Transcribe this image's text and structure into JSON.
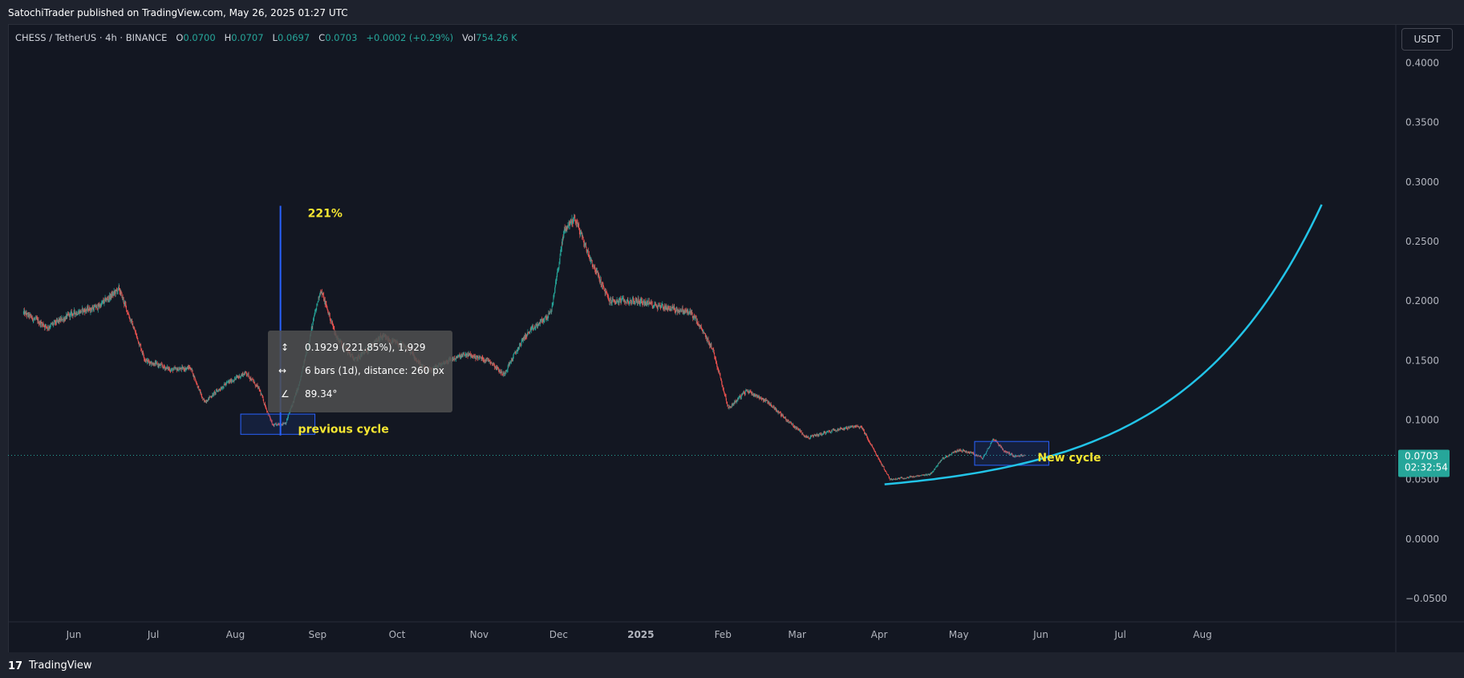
{
  "header": {
    "published": "SatochiTrader published on TradingView.com, May 26, 2025 01:27 UTC"
  },
  "legend": {
    "symbol": "CHESS / TetherUS · 4h · BINANCE",
    "o_label": "O",
    "o_value": "0.0700",
    "h_label": "H",
    "h_value": "0.0707",
    "l_label": "L",
    "l_value": "0.0697",
    "c_label": "C",
    "c_value": "0.0703",
    "change": "+0.0002 (+0.29%)",
    "vol_label": "Vol",
    "vol_value": "754.26 K"
  },
  "currency_button": "USDT",
  "footer": {
    "brand": "TradingView",
    "logo": "17"
  },
  "colors": {
    "up": "#26a69a",
    "down": "#ef5350",
    "curve": "#22c4e8",
    "measure": "#2962ff",
    "annotation": "#f5e632",
    "background": "#131722"
  },
  "chart_data": {
    "type": "candlestick",
    "title": "",
    "xlabel": "",
    "ylabel": "",
    "ylim": [
      -0.06,
      0.41
    ],
    "grid": false,
    "y_ticks": [
      "0.4000",
      "0.3500",
      "0.3000",
      "0.2500",
      "0.2000",
      "0.1500",
      "0.1000",
      "0.0500",
      "0.0000",
      "−0.0500"
    ],
    "y_tick_values": [
      0.4,
      0.35,
      0.3,
      0.25,
      0.2,
      0.15,
      0.1,
      0.05,
      0.0,
      -0.05
    ],
    "x_range": [
      "2024-05-13",
      "2025-09-25"
    ],
    "x_ticks": [
      {
        "label": "Jun",
        "date": "2024-06-01",
        "bold": false
      },
      {
        "label": "Jul",
        "date": "2024-07-01",
        "bold": false
      },
      {
        "label": "Aug",
        "date": "2024-08-01",
        "bold": false
      },
      {
        "label": "Sep",
        "date": "2024-09-01",
        "bold": false
      },
      {
        "label": "Oct",
        "date": "2024-10-01",
        "bold": false
      },
      {
        "label": "Nov",
        "date": "2024-11-01",
        "bold": false
      },
      {
        "label": "Dec",
        "date": "2024-12-01",
        "bold": false
      },
      {
        "label": "2025",
        "date": "2025-01-01",
        "bold": true
      },
      {
        "label": "Feb",
        "date": "2025-02-01",
        "bold": false
      },
      {
        "label": "Mar",
        "date": "2025-03-01",
        "bold": false
      },
      {
        "label": "Apr",
        "date": "2025-04-01",
        "bold": false
      },
      {
        "label": "May",
        "date": "2025-05-01",
        "bold": false
      },
      {
        "label": "Jun",
        "date": "2025-06-01",
        "bold": false
      },
      {
        "label": "Jul",
        "date": "2025-07-01",
        "bold": false
      },
      {
        "label": "Aug",
        "date": "2025-08-01",
        "bold": false
      }
    ],
    "price_path": [
      [
        "2024-05-13",
        0.19
      ],
      [
        "2024-05-22",
        0.178
      ],
      [
        "2024-06-01",
        0.19
      ],
      [
        "2024-06-10",
        0.195
      ],
      [
        "2024-06-18",
        0.21
      ],
      [
        "2024-06-28",
        0.15
      ],
      [
        "2024-07-08",
        0.142
      ],
      [
        "2024-07-15",
        0.144
      ],
      [
        "2024-07-20",
        0.115
      ],
      [
        "2024-07-28",
        0.13
      ],
      [
        "2024-08-05",
        0.14
      ],
      [
        "2024-08-10",
        0.125
      ],
      [
        "2024-08-15",
        0.095
      ],
      [
        "2024-08-20",
        0.098
      ],
      [
        "2024-08-25",
        0.13
      ],
      [
        "2024-08-29",
        0.17
      ],
      [
        "2024-09-02",
        0.21
      ],
      [
        "2024-09-08",
        0.17
      ],
      [
        "2024-09-15",
        0.15
      ],
      [
        "2024-09-25",
        0.17
      ],
      [
        "2024-10-05",
        0.16
      ],
      [
        "2024-10-12",
        0.14
      ],
      [
        "2024-10-20",
        0.15
      ],
      [
        "2024-10-27",
        0.155
      ],
      [
        "2024-11-05",
        0.15
      ],
      [
        "2024-11-10",
        0.138
      ],
      [
        "2024-11-18",
        0.17
      ],
      [
        "2024-11-28",
        0.19
      ],
      [
        "2024-12-03",
        0.26
      ],
      [
        "2024-12-07",
        0.27
      ],
      [
        "2024-12-12",
        0.24
      ],
      [
        "2024-12-20",
        0.2
      ],
      [
        "2024-12-31",
        0.2
      ],
      [
        "2025-01-10",
        0.195
      ],
      [
        "2025-01-20",
        0.19
      ],
      [
        "2025-01-28",
        0.16
      ],
      [
        "2025-02-03",
        0.11
      ],
      [
        "2025-02-10",
        0.125
      ],
      [
        "2025-02-18",
        0.115
      ],
      [
        "2025-02-25",
        0.1
      ],
      [
        "2025-03-05",
        0.085
      ],
      [
        "2025-03-15",
        0.092
      ],
      [
        "2025-03-25",
        0.095
      ],
      [
        "2025-03-31",
        0.07
      ],
      [
        "2025-04-05",
        0.05
      ],
      [
        "2025-04-12",
        0.052
      ],
      [
        "2025-04-20",
        0.054
      ],
      [
        "2025-04-25",
        0.068
      ],
      [
        "2025-05-01",
        0.075
      ],
      [
        "2025-05-06",
        0.072
      ],
      [
        "2025-05-10",
        0.068
      ],
      [
        "2025-05-14",
        0.085
      ],
      [
        "2025-05-18",
        0.074
      ],
      [
        "2025-05-22",
        0.07
      ],
      [
        "2025-05-26",
        0.0703
      ]
    ],
    "last_price": {
      "value": 0.0703,
      "label": "0.0703",
      "countdown": "02:32:54"
    },
    "annotations": {
      "pct_label": "221%",
      "previous_cycle_label": "previous cycle",
      "new_cycle_label": "New cycle",
      "previous_box": {
        "from": "2024-08-03",
        "to": "2024-08-31",
        "low": 0.088,
        "high": 0.105
      },
      "new_box": {
        "from": "2025-05-07",
        "to": "2025-06-04",
        "low": 0.062,
        "high": 0.082
      },
      "measure_line": {
        "date": "2024-08-18",
        "from": 0.087,
        "to": 0.28
      },
      "curve": {
        "start": [
          "2025-04-03",
          0.046
        ],
        "end": [
          "2025-09-15",
          0.281
        ]
      }
    },
    "tooltip": {
      "price_line": "0.1929 (221.85%), 1,929",
      "bars_line": "6 bars (1d), distance: 260 px",
      "angle_line": "89.34°"
    }
  }
}
